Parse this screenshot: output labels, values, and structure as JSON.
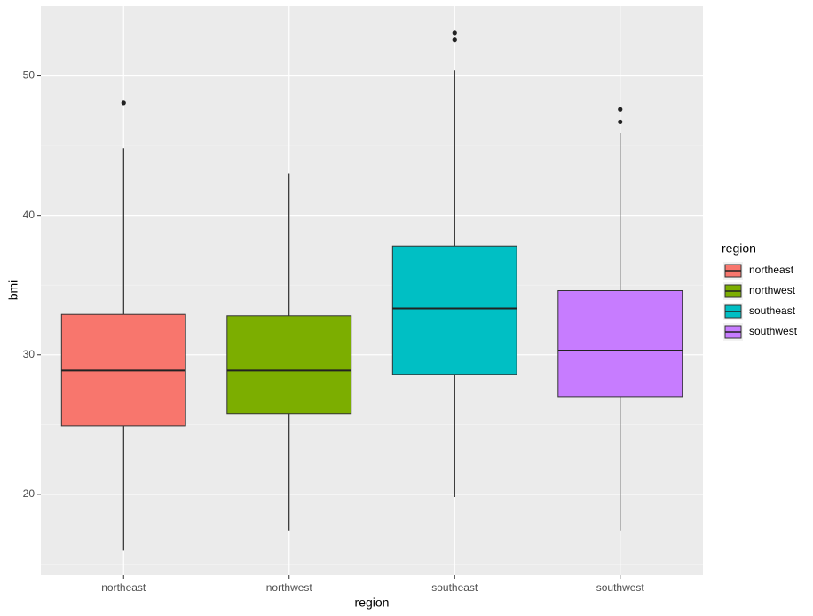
{
  "chart_data": {
    "type": "boxplot",
    "x_label": "region",
    "y_label": "bmi",
    "categories": [
      "northeast",
      "northwest",
      "southeast",
      "southwest"
    ],
    "colors": [
      "#F8766D",
      "#7CAE00",
      "#00BFC4",
      "#C77CFF"
    ],
    "boxes": [
      {
        "low": 15.96,
        "q1": 24.9,
        "median": 28.88,
        "q3": 32.9,
        "high": 44.8,
        "outliers": [
          48.07
        ]
      },
      {
        "low": 17.4,
        "q1": 25.8,
        "median": 28.88,
        "q3": 32.8,
        "high": 43.0,
        "outliers": []
      },
      {
        "low": 19.8,
        "q1": 28.6,
        "median": 33.33,
        "q3": 37.8,
        "high": 50.4,
        "outliers": [
          53.1,
          52.6
        ]
      },
      {
        "low": 17.4,
        "q1": 27.0,
        "median": 30.3,
        "q3": 34.6,
        "high": 45.9,
        "outliers": [
          47.6,
          46.7
        ]
      }
    ],
    "ylim": [
      14.2,
      55.0
    ],
    "yticks": [
      20,
      30,
      40,
      50
    ],
    "grid": true,
    "legend": {
      "title": "region",
      "position": "right"
    }
  }
}
